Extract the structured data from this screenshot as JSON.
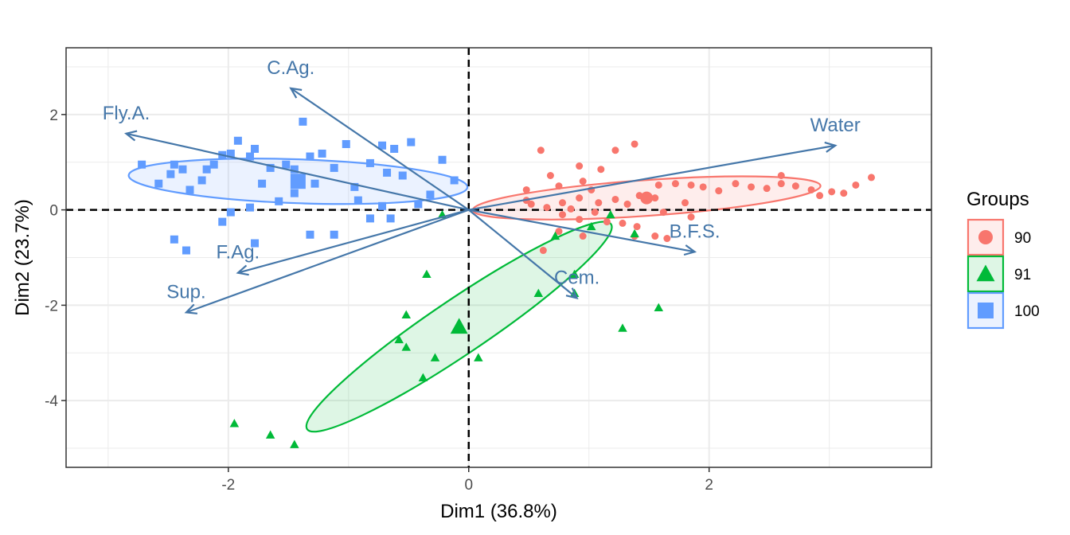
{
  "chart_data": {
    "type": "scatter",
    "subtype": "pca-biplot",
    "xlabel": "Dim1 (36.8%)",
    "ylabel": "Dim2 (23.7%)",
    "xlim": [
      -3.35,
      3.85
    ],
    "ylim": [
      -5.4,
      3.4
    ],
    "x_ticks": [
      -2,
      0,
      2
    ],
    "y_ticks": [
      -4,
      -2,
      0,
      2
    ],
    "grid": true,
    "reference_lines": {
      "x": 0,
      "y": 0,
      "style": "dashed"
    },
    "legend": {
      "title": "Groups",
      "position": "right"
    },
    "groups": [
      {
        "name": "90",
        "color": "#F8766D",
        "marker": "circle",
        "centroid": [
          1.48,
          0.25
        ],
        "ellipse": {
          "cx": 1.48,
          "cy": 0.25,
          "rx": 2.9,
          "ry": 0.75,
          "angle_deg": 4
        },
        "points": [
          [
            0.48,
            0.42
          ],
          [
            0.68,
            0.72
          ],
          [
            0.52,
            0.12
          ],
          [
            0.78,
            0.15
          ],
          [
            0.85,
            0.02
          ],
          [
            0.92,
            0.25
          ],
          [
            1.02,
            0.42
          ],
          [
            1.08,
            0.15
          ],
          [
            1.22,
            0.22
          ],
          [
            1.32,
            0.12
          ],
          [
            1.42,
            0.3
          ],
          [
            1.55,
            0.25
          ],
          [
            1.58,
            0.52
          ],
          [
            1.72,
            0.55
          ],
          [
            1.85,
            0.52
          ],
          [
            1.95,
            0.48
          ],
          [
            2.08,
            0.4
          ],
          [
            2.22,
            0.55
          ],
          [
            2.35,
            0.48
          ],
          [
            2.48,
            0.45
          ],
          [
            2.6,
            0.55
          ],
          [
            2.72,
            0.5
          ],
          [
            2.85,
            0.42
          ],
          [
            2.92,
            0.3
          ],
          [
            3.02,
            0.38
          ],
          [
            3.12,
            0.35
          ],
          [
            3.22,
            0.52
          ],
          [
            3.35,
            0.68
          ],
          [
            0.48,
            0.2
          ],
          [
            0.65,
            0.05
          ],
          [
            0.78,
            -0.1
          ],
          [
            0.92,
            -0.2
          ],
          [
            1.05,
            -0.05
          ],
          [
            1.15,
            -0.25
          ],
          [
            1.28,
            -0.28
          ],
          [
            1.4,
            -0.35
          ],
          [
            1.55,
            -0.55
          ],
          [
            1.65,
            -0.6
          ],
          [
            0.95,
            -0.55
          ],
          [
            0.75,
            -0.45
          ],
          [
            0.62,
            -0.85
          ],
          [
            1.38,
            -0.55
          ],
          [
            1.62,
            -0.05
          ],
          [
            1.85,
            -0.15
          ],
          [
            0.6,
            1.25
          ],
          [
            0.92,
            0.92
          ],
          [
            1.22,
            1.25
          ],
          [
            1.38,
            1.38
          ],
          [
            0.75,
            0.5
          ],
          [
            1.1,
            0.85
          ],
          [
            1.8,
            0.15
          ],
          [
            2.6,
            0.72
          ],
          [
            0.95,
            0.6
          ]
        ]
      },
      {
        "name": "91",
        "color": "#00BA38",
        "marker": "triangle",
        "centroid": [
          -0.08,
          -2.45
        ],
        "ellipse": {
          "cx": -0.08,
          "cy": -2.45,
          "rx": 3.05,
          "ry": 1.15,
          "angle_deg": 34
        },
        "points": [
          [
            -0.35,
            -1.35
          ],
          [
            -0.52,
            -2.2
          ],
          [
            -0.58,
            -2.72
          ],
          [
            -0.52,
            -2.88
          ],
          [
            -0.28,
            -3.1
          ],
          [
            -0.38,
            -3.52
          ],
          [
            0.08,
            -3.1
          ],
          [
            -0.22,
            -0.1
          ],
          [
            0.58,
            -1.75
          ],
          [
            0.88,
            -1.35
          ],
          [
            0.88,
            -1.75
          ],
          [
            1.28,
            -2.48
          ],
          [
            1.58,
            -2.05
          ],
          [
            -1.95,
            -4.48
          ],
          [
            -1.65,
            -4.72
          ],
          [
            -1.45,
            -4.92
          ],
          [
            1.38,
            -0.5
          ],
          [
            1.18,
            -0.1
          ],
          [
            0.72,
            -0.55
          ],
          [
            1.02,
            -0.35
          ]
        ]
      },
      {
        "name": "100",
        "color": "#619CFF",
        "marker": "square",
        "centroid": [
          -1.42,
          0.6
        ],
        "ellipse": {
          "cx": -1.42,
          "cy": 0.6,
          "rx": 2.82,
          "ry": 0.92,
          "angle_deg": -2
        },
        "points": [
          [
            -2.72,
            0.95
          ],
          [
            -2.58,
            0.55
          ],
          [
            -2.45,
            0.95
          ],
          [
            -2.38,
            0.85
          ],
          [
            -2.48,
            0.75
          ],
          [
            -2.32,
            0.42
          ],
          [
            -2.18,
            0.85
          ],
          [
            -2.12,
            0.95
          ],
          [
            -2.05,
            1.15
          ],
          [
            -1.98,
            1.18
          ],
          [
            -1.92,
            1.45
          ],
          [
            -1.82,
            1.12
          ],
          [
            -1.72,
            0.55
          ],
          [
            -1.65,
            0.88
          ],
          [
            -1.58,
            0.18
          ],
          [
            -1.52,
            0.95
          ],
          [
            -1.45,
            0.85
          ],
          [
            -1.38,
            1.85
          ],
          [
            -1.32,
            1.12
          ],
          [
            -1.28,
            0.55
          ],
          [
            -1.22,
            1.18
          ],
          [
            -1.12,
            0.88
          ],
          [
            -1.02,
            1.38
          ],
          [
            -0.95,
            0.48
          ],
          [
            -0.82,
            0.98
          ],
          [
            -0.72,
            1.35
          ],
          [
            -0.68,
            0.78
          ],
          [
            -0.62,
            1.28
          ],
          [
            -0.55,
            0.72
          ],
          [
            -0.48,
            1.42
          ],
          [
            -0.42,
            0.12
          ],
          [
            -0.32,
            0.32
          ],
          [
            -0.22,
            1.05
          ],
          [
            -0.12,
            0.62
          ],
          [
            -2.35,
            -0.85
          ],
          [
            -2.45,
            -0.62
          ],
          [
            -1.78,
            -0.7
          ],
          [
            -1.98,
            -0.05
          ],
          [
            -1.82,
            0.05
          ],
          [
            -1.32,
            -0.52
          ],
          [
            -1.12,
            -0.52
          ],
          [
            -0.65,
            -0.18
          ],
          [
            -0.72,
            0.08
          ],
          [
            -0.82,
            -0.18
          ],
          [
            -2.05,
            -0.25
          ],
          [
            -1.45,
            0.35
          ],
          [
            -1.78,
            1.28
          ],
          [
            -0.92,
            0.2
          ],
          [
            -2.22,
            0.62
          ]
        ]
      }
    ],
    "variables": [
      {
        "name": "C.Ag.",
        "x": -1.48,
        "y": 2.55
      },
      {
        "name": "Fly.A.",
        "x": -2.85,
        "y": 1.6
      },
      {
        "name": "Water",
        "x": 3.05,
        "y": 1.35
      },
      {
        "name": "B.F.S.",
        "x": 1.88,
        "y": -0.88
      },
      {
        "name": "F.Ag.",
        "x": -1.92,
        "y": -1.32
      },
      {
        "name": "Sup.",
        "x": -2.35,
        "y": -2.15
      },
      {
        "name": "Cem.",
        "x": 0.9,
        "y": -1.85
      }
    ],
    "variable_color": "#4577A9"
  }
}
